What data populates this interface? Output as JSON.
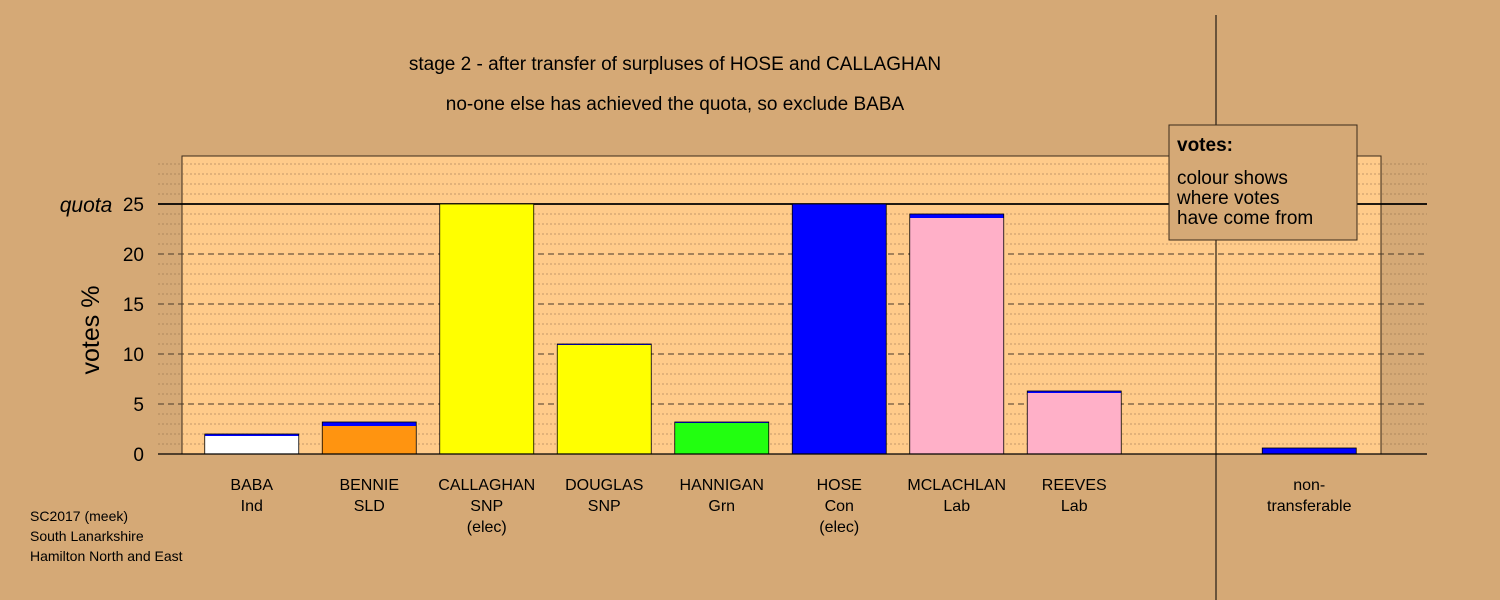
{
  "chart_data": {
    "type": "bar",
    "title": "stage 2 - after transfer of surpluses of HOSE and CALLAGHAN",
    "subtitle": "no-one else has achieved the quota, so exclude BABA",
    "ylabel": "votes %",
    "ylim": [
      0,
      30
    ],
    "yticks": [
      "0",
      "5",
      "10",
      "15",
      "20",
      "25"
    ],
    "quota": {
      "label": "quota",
      "value": 25
    },
    "grid": true,
    "legend": {
      "placement": "top-right",
      "title": "votes:",
      "lines": [
        "colour shows",
        "where votes",
        "have come from"
      ]
    },
    "candidates": [
      {
        "name": "BABA",
        "party": "Ind",
        "status": "",
        "color": "#ffffff",
        "segments": [
          {
            "source": "BABA",
            "color": "#ffffff",
            "value": 1.8
          },
          {
            "source": "HOSE",
            "color": "#0000ff",
            "value": 0.2
          }
        ]
      },
      {
        "name": "BENNIE",
        "party": "SLD",
        "status": "",
        "color": "#ff9410",
        "segments": [
          {
            "source": "BENNIE",
            "color": "#ff9410",
            "value": 2.8
          },
          {
            "source": "HOSE",
            "color": "#0000ff",
            "value": 0.4
          }
        ]
      },
      {
        "name": "CALLAGHAN",
        "party": "SNP",
        "status": "(elec)",
        "color": "#ffff00",
        "segments": [
          {
            "source": "CALLAGHAN",
            "color": "#ffff00",
            "value": 25
          }
        ]
      },
      {
        "name": "DOUGLAS",
        "party": "SNP",
        "status": "",
        "color": "#ffff00",
        "segments": [
          {
            "source": "DOUGLAS",
            "color": "#ffff00",
            "value": 10.9
          },
          {
            "source": "HOSE",
            "color": "#0000ff",
            "value": 0.1
          }
        ]
      },
      {
        "name": "HANNIGAN",
        "party": "Grn",
        "status": "",
        "color": "#22ff10",
        "segments": [
          {
            "source": "HANNIGAN",
            "color": "#22ff10",
            "value": 3.1
          },
          {
            "source": "HOSE",
            "color": "#0000ff",
            "value": 0.1
          }
        ]
      },
      {
        "name": "HOSE",
        "party": "Con",
        "status": "(elec)",
        "color": "#0000ff",
        "segments": [
          {
            "source": "HOSE",
            "color": "#0000ff",
            "value": 25
          }
        ]
      },
      {
        "name": "MCLACHLAN",
        "party": "Lab",
        "status": "",
        "color": "#ffb0c8",
        "segments": [
          {
            "source": "MCLACHLAN",
            "color": "#ffb0c8",
            "value": 23.6
          },
          {
            "source": "HOSE",
            "color": "#0000ff",
            "value": 0.4
          }
        ]
      },
      {
        "name": "REEVES",
        "party": "Lab",
        "status": "",
        "color": "#ffb0c8",
        "segments": [
          {
            "source": "REEVES",
            "color": "#ffb0c8",
            "value": 6.1
          },
          {
            "source": "HOSE",
            "color": "#0000ff",
            "value": 0.2
          }
        ]
      }
    ],
    "non_transferable": {
      "label_line1": "non-",
      "label_line2": "transferable",
      "segments": [
        {
          "source": "HOSE",
          "color": "#0000ff",
          "value": 0.6
        }
      ]
    }
  },
  "footer": {
    "line1": "SC2017 (meek)",
    "line2": "South Lanarkshire",
    "line3": "Hamilton North and East"
  }
}
